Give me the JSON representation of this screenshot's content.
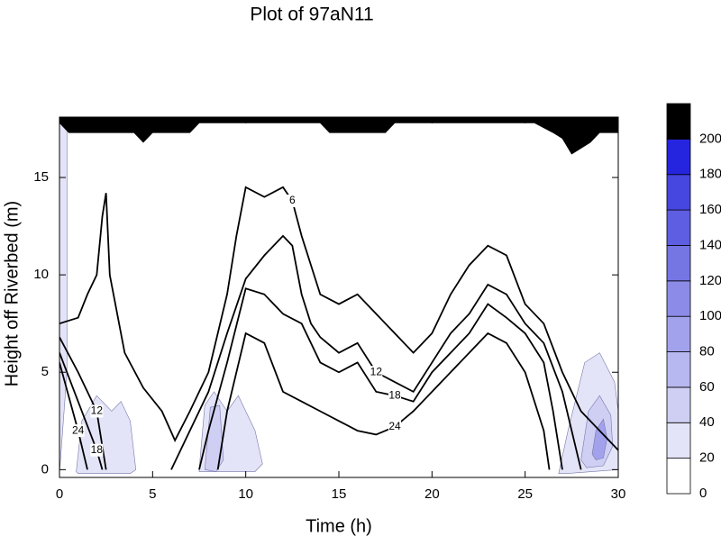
{
  "chart_data": {
    "type": "contour",
    "title": "Plot of 97aN11",
    "xlabel": "Time (h)",
    "ylabel": "Height off Riverbed (m)",
    "xlim": [
      0,
      30
    ],
    "xticks": [
      0,
      5,
      10,
      15,
      20,
      25,
      30
    ],
    "ylim": [
      -0.4,
      18.1
    ],
    "yticks": [
      0,
      5,
      10,
      15
    ],
    "colorbar": {
      "levels": [
        0,
        20,
        40,
        60,
        80,
        100,
        120,
        140,
        160,
        180,
        200,
        220
      ],
      "ticks": [
        0,
        20,
        40,
        60,
        80,
        100,
        120,
        140,
        160,
        180,
        200
      ],
      "colors": [
        "#ffffff",
        "#e4e4f8",
        "#cfcff4",
        "#b8b8f0",
        "#a2a2ec",
        "#8c8ce8",
        "#7575e4",
        "#5e5ee2",
        "#4646e0",
        "#2525e0",
        "#000000"
      ]
    },
    "fills": [
      {
        "level": 20,
        "x": [
          0,
          0.4,
          0.4,
          0
        ],
        "y": [
          -0.2,
          5,
          18,
          18
        ]
      },
      {
        "level": 20,
        "x": [
          0.9,
          1.2,
          2,
          2.8,
          3.3,
          3.8,
          4.1,
          3.8,
          1
        ],
        "y": [
          -0.1,
          2.5,
          3.8,
          3,
          3.5,
          2.5,
          0,
          -0.2,
          -0.2
        ]
      },
      {
        "level": 20,
        "x": [
          7.5,
          7.8,
          8.3,
          9,
          9.6,
          10.5,
          10.9,
          10.5,
          7.5
        ],
        "y": [
          0,
          3.3,
          4,
          3,
          3.8,
          2,
          0.3,
          -0.1,
          -0.1
        ]
      },
      {
        "level": 40,
        "x": [
          7.8,
          8.1,
          8.6,
          8.8,
          8.4
        ],
        "y": [
          0,
          3.2,
          3.3,
          0.5,
          -0.1
        ]
      },
      {
        "level": 20,
        "x": [
          26.8,
          27.3,
          28.2,
          29,
          29.8,
          30,
          30,
          27.2
        ],
        "y": [
          -0.2,
          2,
          5.5,
          6,
          4.5,
          3,
          0,
          -0.2
        ]
      },
      {
        "level": 40,
        "x": [
          28,
          28.4,
          29,
          29.6,
          29.7,
          29.2,
          28.3
        ],
        "y": [
          0.5,
          3,
          3.8,
          2.8,
          1.2,
          0.2,
          0.1
        ]
      },
      {
        "level": 80,
        "x": [
          28.6,
          28.8,
          29.2,
          29.4,
          29.2,
          28.8
        ],
        "y": [
          0.8,
          2,
          2.6,
          1.6,
          0.6,
          0.5
        ]
      },
      {
        "level": 200,
        "x": [
          0,
          0,
          0.5,
          4,
          4.5,
          5,
          7,
          7.5,
          14,
          14.5,
          17.5,
          18,
          25.5,
          26.5,
          27,
          27.5,
          28.5,
          29,
          30,
          30
        ],
        "y": [
          18.1,
          17.8,
          17.3,
          17.3,
          16.8,
          17.3,
          17.3,
          17.8,
          17.8,
          17.3,
          17.3,
          17.8,
          17.8,
          17.3,
          17,
          16.2,
          16.8,
          17.3,
          17.3,
          18.1
        ]
      }
    ],
    "contours": [
      {
        "level": 6,
        "x": [
          0,
          1,
          1.5,
          2,
          2.3,
          2.5,
          2.7,
          3.5,
          4.5,
          5.5,
          6.2,
          7,
          8,
          9,
          9.5,
          10,
          11,
          12,
          12.5,
          13,
          14,
          15,
          16,
          17,
          18,
          19,
          20,
          21,
          22,
          23,
          24,
          25,
          26,
          27,
          28,
          29,
          30
        ],
        "y": [
          7.5,
          7.8,
          9,
          10,
          13,
          14.2,
          10,
          6,
          4.2,
          3,
          1.5,
          3,
          5,
          9,
          12,
          14.5,
          14,
          14.5,
          13.8,
          12,
          9,
          8.5,
          9,
          8,
          7,
          6,
          7,
          9,
          10.5,
          11.5,
          11,
          8.5,
          7.5,
          5,
          3,
          2,
          1
        ]
      },
      {
        "level": 12,
        "x": [
          0,
          1,
          2,
          2.5,
          null,
          6,
          7,
          8,
          9,
          10,
          11,
          12,
          12.5,
          13,
          13.5,
          14,
          15,
          16,
          17,
          18,
          19,
          20,
          21,
          22,
          23,
          24,
          25,
          26,
          27,
          27.5,
          28
        ],
        "y": [
          6.8,
          5,
          3,
          0,
          null,
          0,
          2,
          4,
          7,
          9.8,
          11,
          12,
          11.5,
          9,
          7.5,
          6.8,
          6,
          6.5,
          5,
          4.5,
          4,
          5.5,
          7,
          8,
          9.5,
          9,
          7.5,
          6.5,
          4,
          2,
          0
        ]
      },
      {
        "level": 18,
        "x": [
          0,
          1,
          2,
          2.3,
          null,
          7.5,
          8,
          9,
          10,
          11,
          12,
          13,
          14,
          15,
          16,
          17,
          18,
          19,
          20,
          21,
          22,
          23,
          24,
          25,
          26,
          26.5,
          27
        ],
        "y": [
          6,
          3.5,
          1,
          0,
          null,
          0,
          2,
          5.5,
          9.3,
          9,
          8,
          7.5,
          5.5,
          5,
          5.5,
          4,
          3.8,
          3.5,
          5,
          6,
          7,
          8.5,
          7.8,
          7,
          5.5,
          3,
          0
        ]
      },
      {
        "level": 24,
        "x": [
          0,
          1,
          1.5,
          null,
          8.5,
          9,
          10,
          11,
          12,
          13,
          14,
          15,
          16,
          17,
          18,
          19,
          20,
          21,
          22,
          23,
          24,
          25,
          26,
          26.3
        ],
        "y": [
          5.5,
          2,
          0,
          null,
          0,
          3,
          7,
          6.5,
          4,
          3.5,
          3,
          2.5,
          2,
          1.8,
          2.2,
          3,
          4,
          5,
          6,
          7,
          6.5,
          5,
          2,
          0
        ]
      }
    ]
  }
}
